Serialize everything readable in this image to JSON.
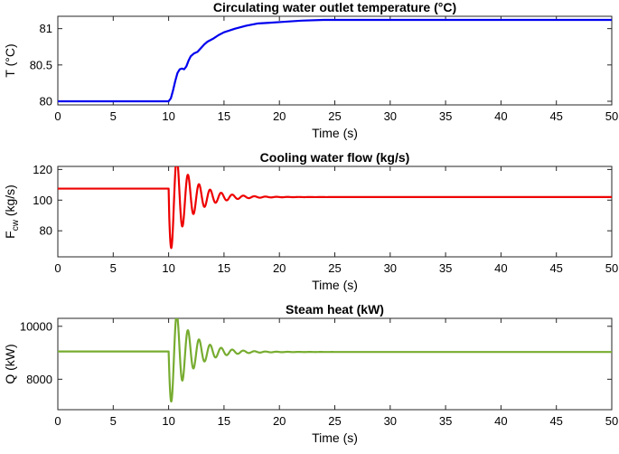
{
  "chart_data": [
    {
      "type": "line",
      "title": "Circulating water outlet temperature (°C)",
      "xlabel": "Time (s)",
      "ylabel": "T (°C)",
      "xlim": [
        0,
        50
      ],
      "ylim": [
        79.95,
        81.17
      ],
      "xticks": [
        0,
        5,
        10,
        15,
        20,
        25,
        30,
        35,
        40,
        45,
        50
      ],
      "yticks": [
        80,
        80.5,
        81
      ],
      "ytick_labels": [
        "80",
        "80.5",
        "81"
      ],
      "grid": false,
      "series": [
        {
          "name": "T",
          "color": "#0000ee",
          "x": [
            0,
            10,
            10.2,
            10.4,
            10.6,
            10.8,
            11.0,
            11.2,
            11.4,
            11.6,
            11.8,
            12.0,
            12.3,
            12.6,
            12.9,
            13.2,
            13.5,
            14.0,
            14.5,
            15.0,
            16.0,
            17.0,
            18.0,
            19.0,
            20.0,
            22.0,
            24.0,
            26.0,
            30.0,
            35.0,
            40.0,
            45.0,
            50.0
          ],
          "y": [
            80.0,
            80.0,
            80.04,
            80.15,
            80.28,
            80.39,
            80.44,
            80.45,
            80.44,
            80.48,
            80.56,
            80.62,
            80.66,
            80.68,
            80.73,
            80.78,
            80.82,
            80.86,
            80.91,
            80.95,
            81.0,
            81.04,
            81.07,
            81.08,
            81.09,
            81.11,
            81.12,
            81.12,
            81.12,
            81.12,
            81.12,
            81.12,
            81.12
          ]
        }
      ]
    },
    {
      "type": "line",
      "title": "Cooling water flow (kg/s)",
      "xlabel": "Time (s)",
      "ylabel": "F_cw (kg/s)",
      "ylabel_main": "F",
      "ylabel_sub": "cw",
      "ylabel_unit": " (kg/s)",
      "xlim": [
        0,
        50
      ],
      "ylim": [
        63,
        122
      ],
      "xticks": [
        0,
        5,
        10,
        15,
        20,
        25,
        30,
        35,
        40,
        45,
        50
      ],
      "yticks": [
        80,
        100,
        120
      ],
      "ytick_labels": [
        "80",
        "100",
        "120"
      ],
      "grid": false,
      "series": [
        {
          "name": "Fcw",
          "color": "#ee0000",
          "oscillation": {
            "start": 10.0,
            "steady": 102,
            "amplitude": -38,
            "period": 1.0,
            "decay": 0.55
          },
          "initial": 107.5,
          "x_end": 50
        }
      ]
    },
    {
      "type": "line",
      "title": "Steam heat (kW)",
      "xlabel": "Time (s)",
      "ylabel": "Q (kW)",
      "xlim": [
        0,
        50
      ],
      "ylim": [
        6850,
        10300
      ],
      "xticks": [
        0,
        5,
        10,
        15,
        20,
        25,
        30,
        35,
        40,
        45,
        50
      ],
      "yticks": [
        8000,
        10000
      ],
      "ytick_labels": [
        "8000",
        "10000"
      ],
      "grid": false,
      "series": [
        {
          "name": "Q",
          "color": "#77ac30",
          "oscillation": {
            "start": 10.0,
            "steady": 9030,
            "amplitude": -2140,
            "period": 1.0,
            "decay": 0.55
          },
          "initial": 9050,
          "x_end": 50
        }
      ]
    }
  ]
}
